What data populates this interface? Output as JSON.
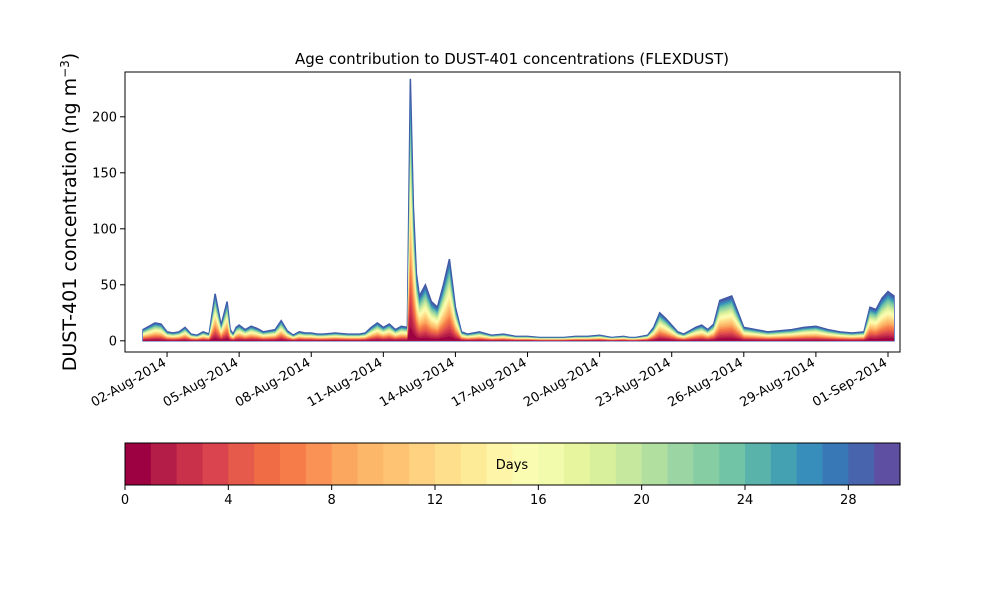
{
  "chart_data": {
    "type": "area",
    "title": "Age contribution to DUST-401 concentrations (FLEXDUST)",
    "ylabel_main": "DUST-401 concentration (ng m",
    "ylabel_sup": "−3",
    "ylabel_close": ")",
    "xlabel": "",
    "ylim": [
      -10,
      240
    ],
    "yticks": [
      0,
      50,
      100,
      150,
      200
    ],
    "xlim": [
      "2014-07-31 06:00",
      "2014-09-01 12:00"
    ],
    "xticks": [
      "2014-08-02",
      "2014-08-05",
      "2014-08-08",
      "2014-08-11",
      "2014-08-14",
      "2014-08-17",
      "2014-08-20",
      "2014-08-23",
      "2014-08-26",
      "2014-08-29",
      "2014-09-01"
    ],
    "xtick_labels": [
      "02-Aug-2014",
      "05-Aug-2014",
      "08-Aug-2014",
      "11-Aug-2014",
      "14-Aug-2014",
      "17-Aug-2014",
      "20-Aug-2014",
      "23-Aug-2014",
      "26-Aug-2014",
      "29-Aug-2014",
      "01-Sep-2014"
    ],
    "total": {
      "x": [
        "2014-08-01 00:00",
        "2014-08-01 06:00",
        "2014-08-01 12:00",
        "2014-08-01 18:00",
        "2014-08-02 00:00",
        "2014-08-02 06:00",
        "2014-08-02 12:00",
        "2014-08-02 18:00",
        "2014-08-03 00:00",
        "2014-08-03 06:00",
        "2014-08-03 12:00",
        "2014-08-03 18:00",
        "2014-08-04 00:00",
        "2014-08-04 06:00",
        "2014-08-04 12:00",
        "2014-08-04 15:00",
        "2014-08-04 18:00",
        "2014-08-04 21:00",
        "2014-08-05 00:00",
        "2014-08-05 06:00",
        "2014-08-05 12:00",
        "2014-08-05 18:00",
        "2014-08-06 00:00",
        "2014-08-06 06:00",
        "2014-08-06 12:00",
        "2014-08-06 18:00",
        "2014-08-07 00:00",
        "2014-08-07 06:00",
        "2014-08-07 12:00",
        "2014-08-07 18:00",
        "2014-08-08 00:00",
        "2014-08-08 06:00",
        "2014-08-08 12:00",
        "2014-08-09 00:00",
        "2014-08-09 12:00",
        "2014-08-10 00:00",
        "2014-08-10 06:00",
        "2014-08-10 12:00",
        "2014-08-10 18:00",
        "2014-08-11 00:00",
        "2014-08-11 06:00",
        "2014-08-11 12:00",
        "2014-08-11 18:00",
        "2014-08-12 00:00",
        "2014-08-12 03:00",
        "2014-08-12 06:00",
        "2014-08-12 09:00",
        "2014-08-12 12:00",
        "2014-08-12 18:00",
        "2014-08-13 00:00",
        "2014-08-13 06:00",
        "2014-08-13 12:00",
        "2014-08-13 18:00",
        "2014-08-14 00:00",
        "2014-08-14 06:00",
        "2014-08-14 12:00",
        "2014-08-14 18:00",
        "2014-08-15 00:00",
        "2014-08-15 12:00",
        "2014-08-16 00:00",
        "2014-08-16 12:00",
        "2014-08-17 00:00",
        "2014-08-17 12:00",
        "2014-08-18 00:00",
        "2014-08-18 12:00",
        "2014-08-19 00:00",
        "2014-08-19 12:00",
        "2014-08-20 00:00",
        "2014-08-20 12:00",
        "2014-08-21 00:00",
        "2014-08-21 06:00",
        "2014-08-21 12:00",
        "2014-08-21 18:00",
        "2014-08-22 00:00",
        "2014-08-22 06:00",
        "2014-08-22 12:00",
        "2014-08-22 18:00",
        "2014-08-23 00:00",
        "2014-08-23 06:00",
        "2014-08-23 12:00",
        "2014-08-23 18:00",
        "2014-08-24 00:00",
        "2014-08-24 06:00",
        "2014-08-24 12:00",
        "2014-08-24 18:00",
        "2014-08-25 00:00",
        "2014-08-25 12:00",
        "2014-08-26 00:00",
        "2014-08-26 12:00",
        "2014-08-27 00:00",
        "2014-08-27 12:00",
        "2014-08-28 00:00",
        "2014-08-28 12:00",
        "2014-08-29 00:00",
        "2014-08-29 12:00",
        "2014-08-30 00:00",
        "2014-08-30 12:00",
        "2014-08-31 00:00",
        "2014-08-31 06:00",
        "2014-08-31 12:00",
        "2014-08-31 18:00",
        "2014-09-01 00:00",
        "2014-09-01 06:00"
      ],
      "y": [
        10,
        13,
        16,
        15,
        8,
        7,
        8,
        12,
        6,
        5,
        8,
        6,
        42,
        14,
        35,
        10,
        6,
        12,
        14,
        10,
        13,
        11,
        8,
        9,
        10,
        18,
        9,
        5,
        8,
        7,
        7,
        6,
        6,
        7,
        6,
        6,
        7,
        12,
        16,
        12,
        15,
        10,
        13,
        12,
        234,
        120,
        60,
        40,
        50,
        35,
        30,
        50,
        73,
        30,
        8,
        6,
        7,
        8,
        5,
        6,
        4,
        4,
        3,
        3,
        3,
        4,
        4,
        5,
        3,
        4,
        3,
        3,
        4,
        5,
        12,
        25,
        20,
        14,
        8,
        6,
        9,
        12,
        14,
        10,
        15,
        36,
        40,
        12,
        10,
        8,
        9,
        10,
        12,
        13,
        10,
        8,
        7,
        8,
        30,
        28,
        38,
        44,
        40
      ]
    },
    "colorbar": {
      "label": "Days",
      "range": [
        0,
        30
      ],
      "bins": 30,
      "ticks": [
        0,
        4,
        8,
        12,
        16,
        20,
        24,
        28
      ],
      "colors": [
        "#9e0142",
        "#b41d47",
        "#c9314a",
        "#d9444e",
        "#e55a4a",
        "#ef6c45",
        "#f67c4a",
        "#f99254",
        "#fca75f",
        "#fdb768",
        "#fec473",
        "#fed280",
        "#fedf8b",
        "#feeb98",
        "#fff5a8",
        "#fafcb2",
        "#f2faac",
        "#e6f59e",
        "#d8ef9b",
        "#c6e89e",
        "#b1df9f",
        "#9bd5a3",
        "#86cda4",
        "#71c4a5",
        "#5ab3aa",
        "#44a1b2",
        "#378ebb",
        "#3978b6",
        "#4764ad",
        "#5e4fa2"
      ]
    }
  }
}
